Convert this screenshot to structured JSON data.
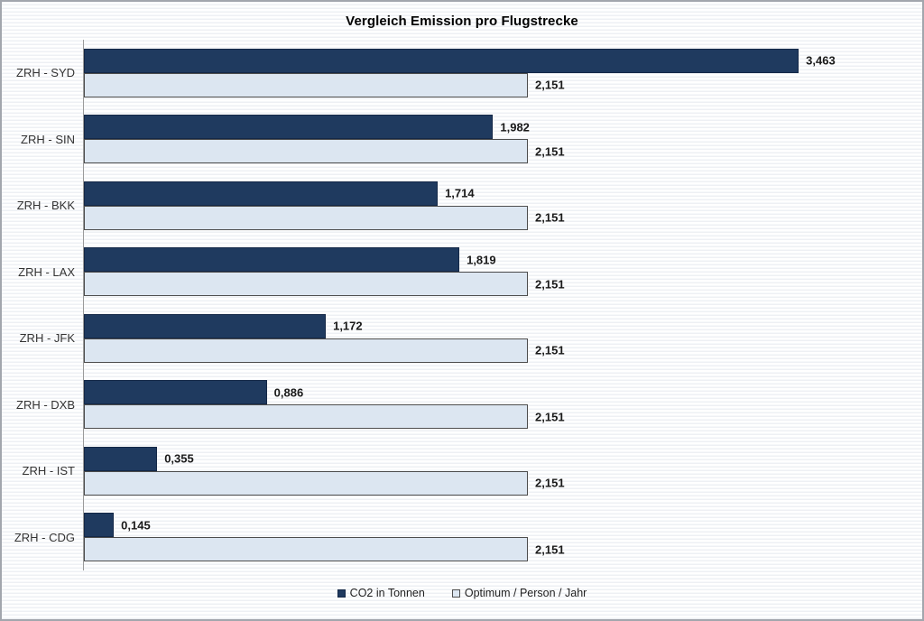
{
  "title": "Vergleich Emission pro Flugstrecke",
  "legend": {
    "items": [
      {
        "label": "CO2 in Tonnen",
        "swatch": "co2"
      },
      {
        "label": "Optimum / Person / Jahr",
        "swatch": "optimum"
      }
    ]
  },
  "colors": {
    "co2_fill": "#1F3A5F",
    "co2_border": "#142847",
    "optimum_fill": "#DCE6F1",
    "optimum_border": "#4D4D4D",
    "axis_line": "#9B9B9B",
    "label_text": "#1A1A1A"
  },
  "chart_data": {
    "type": "bar",
    "orientation": "horizontal",
    "title": "Vergleich Emission pro Flugstrecke",
    "categories": [
      "ZRH - SYD",
      "ZRH - SIN",
      "ZRH - BKK",
      "ZRH - LAX",
      "ZRH - JFK",
      "ZRH - DXB",
      "ZRH - IST",
      "ZRH - CDG"
    ],
    "series": [
      {
        "name": "CO2 in Tonnen",
        "values": [
          3.463,
          1.982,
          1.714,
          1.819,
          1.172,
          0.886,
          0.355,
          0.145
        ],
        "labels": [
          "3,463",
          "1,982",
          "1,714",
          "1,819",
          "1,172",
          "0,886",
          "0,355",
          "0,145"
        ]
      },
      {
        "name": "Optimum / Person / Jahr",
        "values": [
          2.151,
          2.151,
          2.151,
          2.151,
          2.151,
          2.151,
          2.151,
          2.151
        ],
        "labels": [
          "2,151",
          "2,151",
          "2,151",
          "2,151",
          "2,151",
          "2,151",
          "2,151",
          "2,151"
        ]
      }
    ],
    "xlim": [
      0,
      4
    ],
    "xlabel": "",
    "ylabel": "",
    "value_labels": true,
    "grid": false,
    "legend_position": "bottom"
  }
}
